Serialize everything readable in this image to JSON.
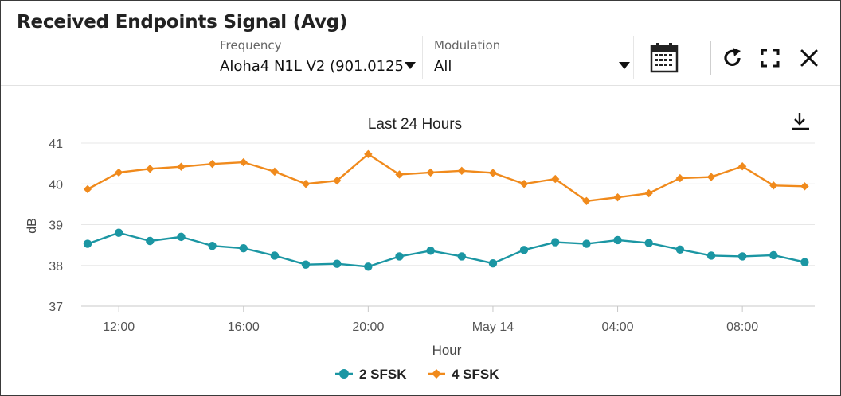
{
  "widget": {
    "title": "Received Endpoints Signal (Avg)"
  },
  "filters": {
    "frequency": {
      "label": "Frequency",
      "value": "Aloha4 N1L V2 (901.0125"
    },
    "modulation": {
      "label": "Modulation",
      "value": "All"
    }
  },
  "icons": {
    "calendar": "calendar-icon",
    "refresh": "refresh-icon",
    "fullscreen": "fullscreen-icon",
    "close": "close-icon",
    "download": "download-icon"
  },
  "chart_data": {
    "type": "line",
    "title": "Last 24 Hours",
    "xlabel": "Hour",
    "ylabel": "dB",
    "ylim": [
      37,
      41
    ],
    "yticks": [
      "37",
      "38",
      "39",
      "40",
      "41"
    ],
    "xtick_labels": [
      "12:00",
      "16:00",
      "20:00",
      "May 14",
      "04:00",
      "08:00"
    ],
    "x": [
      "11:00",
      "12:00",
      "13:00",
      "14:00",
      "15:00",
      "16:00",
      "17:00",
      "18:00",
      "19:00",
      "20:00",
      "21:00",
      "22:00",
      "23:00",
      "00:00",
      "01:00",
      "02:00",
      "03:00",
      "04:00",
      "05:00",
      "06:00",
      "07:00",
      "08:00",
      "09:00",
      "10:00"
    ],
    "grid": true,
    "legend": "bottom",
    "series": [
      {
        "name": "2 SFSK",
        "color": "#1b96a3",
        "marker": "circle",
        "values": [
          38.53,
          38.8,
          38.6,
          38.7,
          38.48,
          38.42,
          38.24,
          38.02,
          38.04,
          37.97,
          38.22,
          38.36,
          38.22,
          38.05,
          38.38,
          38.57,
          38.53,
          38.62,
          38.55,
          38.39,
          38.24,
          38.22,
          38.25,
          38.08
        ]
      },
      {
        "name": "4 SFSK",
        "color": "#f08a1c",
        "marker": "diamond",
        "values": [
          39.87,
          40.28,
          40.37,
          40.42,
          40.49,
          40.53,
          40.3,
          40.0,
          40.08,
          40.73,
          40.23,
          40.28,
          40.32,
          40.27,
          40.0,
          40.12,
          39.58,
          39.67,
          39.77,
          40.14,
          40.17,
          40.43,
          39.96,
          39.94
        ]
      }
    ]
  }
}
